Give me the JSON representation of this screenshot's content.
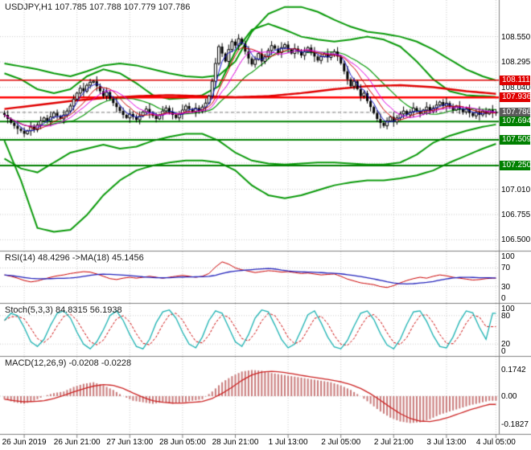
{
  "header": {
    "title": "USDJPY,H1 107.785 107.788 107.779 107.786"
  },
  "indicators": {
    "rsi": {
      "label": "RSI(14) 48.4296 ->MA(18) 45.1456",
      "axis": [
        {
          "v": 100,
          "t": "100"
        },
        {
          "v": 70,
          "t": "70"
        },
        {
          "v": 30,
          "t": "30"
        },
        {
          "v": 0,
          "t": "0"
        }
      ]
    },
    "stoch": {
      "label": "Stoch(5,3,3) 84.8315 56.1938",
      "axis": [
        {
          "v": 100,
          "t": "100"
        },
        {
          "v": 80,
          "t": "80"
        },
        {
          "v": 20,
          "t": "20"
        },
        {
          "v": 0,
          "t": "0"
        }
      ]
    },
    "macd": {
      "label": "MACD(12,26,9) -0.0208 -0.0228",
      "axis": [
        {
          "v": 0.1742,
          "t": "0.1742"
        },
        {
          "v": 0,
          "t": "0.00"
        },
        {
          "v": -0.1827,
          "t": "-0.1827"
        }
      ]
    }
  },
  "price_axis": {
    "plain": [
      {
        "v": 108.55,
        "t": "108.550"
      },
      {
        "v": 108.295,
        "t": "108.295"
      },
      {
        "v": 108.04,
        "t": "108.040"
      },
      {
        "v": 107.01,
        "t": "107.010"
      },
      {
        "v": 106.755,
        "t": "106.755"
      },
      {
        "v": 106.5,
        "t": "106.500"
      }
    ],
    "boxes": [
      {
        "v": 108.111,
        "t": "108.111",
        "bg": "#e00000"
      },
      {
        "v": 107.936,
        "t": "107.936",
        "bg": "#e00000"
      },
      {
        "v": 107.786,
        "t": "107.786",
        "bg": "#5a5a5a"
      },
      {
        "v": 107.694,
        "t": "107.694",
        "bg": "#008000"
      },
      {
        "v": 107.509,
        "t": "107.509",
        "bg": "#008000"
      },
      {
        "v": 107.25,
        "t": "107.250",
        "bg": "#008000"
      }
    ]
  },
  "time_axis": {
    "labels": [
      {
        "i": 6,
        "t": "26 Jun 2019"
      },
      {
        "i": 22,
        "t": "26 Jun 21:00"
      },
      {
        "i": 38,
        "t": "27 Jun 13:00"
      },
      {
        "i": 54,
        "t": "28 Jun 05:00"
      },
      {
        "i": 70,
        "t": "28 Jun 21:00"
      },
      {
        "i": 86,
        "t": "1 Jul 13:00"
      },
      {
        "i": 102,
        "t": "2 Jul 05:00"
      },
      {
        "i": 118,
        "t": "2 Jul 21:00"
      },
      {
        "i": 134,
        "t": "3 Jul 13:00"
      },
      {
        "i": 149,
        "t": "4 Jul 05:00"
      }
    ]
  },
  "colors": {
    "grid": "#cccccc",
    "divider": "#808080",
    "band_green": "#0a9a0a",
    "level_green": "#008000",
    "level_red": "#ff0000",
    "resist_red": "#e00000",
    "ma_blue": "#1414cc",
    "ma_magenta": "#e000e0",
    "ma_red_thin": "#d00000",
    "ma_red_slow": "#e00000",
    "rsi_main": "#cc0000",
    "rsi_ma": "#2020bb",
    "stoch_main": "#1ab2b2",
    "stoch_signal": "#cc0000",
    "macd_hist": "#c97b7b",
    "macd_signal": "#cc2222",
    "current_price_line": "#808080"
  },
  "chart_data": {
    "type": "candlestick",
    "symbol": "USDJPY",
    "timeframe": "H1",
    "ohlc_current": {
      "open": 107.785,
      "high": 107.788,
      "low": 107.779,
      "close": 107.786
    },
    "price_min": 106.39,
    "price_max": 108.92,
    "gridline_prices": [
      108.55,
      108.295,
      108.04,
      107.785,
      107.53,
      107.275,
      107.01,
      106.755,
      106.5
    ],
    "closes": [
      107.76,
      107.72,
      107.68,
      107.65,
      107.62,
      107.6,
      107.57,
      107.6,
      107.64,
      107.61,
      107.66,
      107.7,
      107.73,
      107.7,
      107.74,
      107.78,
      107.75,
      107.72,
      107.76,
      107.8,
      107.85,
      107.92,
      107.98,
      108.03,
      108.0,
      108.06,
      108.09,
      108.1,
      108.05,
      108.0,
      107.95,
      107.99,
      107.92,
      107.88,
      107.84,
      107.8,
      107.76,
      107.73,
      107.77,
      107.74,
      107.71,
      107.75,
      107.79,
      107.82,
      107.78,
      107.75,
      107.72,
      107.76,
      107.8,
      107.83,
      107.79,
      107.76,
      107.73,
      107.77,
      107.81,
      107.85,
      107.82,
      107.79,
      107.83,
      107.8,
      107.84,
      107.88,
      107.95,
      108.1,
      108.28,
      108.45,
      108.38,
      108.3,
      108.42,
      108.5,
      108.46,
      108.53,
      108.48,
      108.4,
      108.33,
      108.27,
      108.32,
      108.38,
      108.3,
      108.35,
      108.41,
      108.46,
      108.43,
      108.39,
      108.44,
      108.47,
      108.42,
      108.38,
      108.43,
      108.4,
      108.36,
      108.4,
      108.44,
      108.39,
      108.35,
      108.31,
      108.35,
      108.38,
      108.34,
      108.37,
      108.4,
      108.35,
      108.28,
      108.2,
      108.12,
      108.05,
      108.1,
      108.02,
      107.95,
      107.98,
      107.9,
      107.84,
      107.78,
      107.72,
      107.68,
      107.65,
      107.7,
      107.74,
      107.69,
      107.73,
      107.77,
      107.8,
      107.76,
      107.79,
      107.83,
      107.8,
      107.77,
      107.81,
      107.84,
      107.8,
      107.83,
      107.86,
      107.89,
      107.85,
      107.88,
      107.84,
      107.81,
      107.85,
      107.82,
      107.79,
      107.82,
      107.78,
      107.75,
      107.79,
      107.76,
      107.8,
      107.77,
      107.81,
      107.78,
      107.79
    ],
    "wick_pattern": [
      0.025,
      0.045,
      0.015,
      0.03,
      0.055,
      0.02,
      0.035,
      0.012,
      0.05,
      0.028
    ],
    "levels": [
      {
        "price": 108.111,
        "color": "#e00000",
        "width": 1.5,
        "dash": null
      },
      {
        "price": 107.936,
        "color": "#ff0000",
        "width": 2.5,
        "dash": null
      },
      {
        "price": 107.786,
        "color": "#808080",
        "width": 1,
        "dash": [
          4,
          3
        ]
      },
      {
        "price": 107.694,
        "color": "#008000",
        "width": 2,
        "dash": null
      },
      {
        "price": 107.509,
        "color": "#008000",
        "width": 2,
        "dash": null
      },
      {
        "price": 107.25,
        "color": "#008000",
        "width": 2,
        "dash": null
      }
    ],
    "bands": {
      "sample_step": 5,
      "upper_inner": [
        108.18,
        108.12,
        108.02,
        107.98,
        108.02,
        108.15,
        108.22,
        108.18,
        108.08,
        107.96,
        107.92,
        107.93,
        107.96,
        108.05,
        108.4,
        108.62,
        108.68,
        108.62,
        108.55,
        108.52,
        108.5,
        108.52,
        108.55,
        108.52,
        108.45,
        108.3,
        108.12,
        108.0,
        107.96,
        107.95,
        107.94
      ],
      "lower_inner": [
        107.32,
        107.22,
        107.18,
        107.28,
        107.38,
        107.42,
        107.46,
        107.42,
        107.44,
        107.5,
        107.54,
        107.57,
        107.57,
        107.5,
        107.38,
        107.3,
        107.27,
        107.26,
        107.27,
        107.28,
        107.28,
        107.27,
        107.26,
        107.26,
        107.28,
        107.36,
        107.48,
        107.55,
        107.6,
        107.64,
        107.67
      ],
      "upper_outer": [
        108.28,
        108.25,
        108.22,
        108.18,
        108.15,
        108.2,
        108.26,
        108.28,
        108.26,
        108.22,
        108.18,
        108.15,
        108.14,
        108.16,
        108.3,
        108.6,
        108.78,
        108.85,
        108.85,
        108.8,
        108.72,
        108.65,
        108.6,
        108.58,
        108.55,
        108.5,
        108.42,
        108.32,
        108.22,
        108.15,
        108.1
      ],
      "lower_outer": [
        107.5,
        107.1,
        106.62,
        106.58,
        106.6,
        106.75,
        106.95,
        107.1,
        107.2,
        107.25,
        107.28,
        107.3,
        107.3,
        107.28,
        107.2,
        107.05,
        106.95,
        106.92,
        106.95,
        107.0,
        107.05,
        107.08,
        107.1,
        107.1,
        107.12,
        107.15,
        107.2,
        107.28,
        107.35,
        107.42,
        107.48
      ]
    },
    "slow_ma_red": {
      "sample_step": 10,
      "values": [
        107.82,
        107.86,
        107.9,
        107.93,
        107.95,
        107.96,
        107.95,
        107.94,
        107.95,
        107.98,
        108.02,
        108.05,
        108.06,
        108.04,
        108.0,
        107.97
      ]
    },
    "rsi": {
      "sample_step": 2,
      "range": [
        0,
        100
      ],
      "levels": [
        70,
        30
      ],
      "values": [
        55,
        52,
        48,
        43,
        40,
        42,
        46,
        50,
        53,
        55,
        58,
        60,
        62,
        61,
        57,
        52,
        47,
        45,
        48,
        50,
        48,
        50,
        52,
        50,
        48,
        50,
        52,
        54,
        52,
        50,
        52,
        58,
        72,
        83,
        78,
        70,
        66,
        63,
        60,
        62,
        64,
        63,
        61,
        62,
        60,
        58,
        59,
        57,
        55,
        56,
        57,
        52,
        46,
        42,
        38,
        36,
        34,
        30,
        28,
        32,
        38,
        43,
        47,
        50,
        48,
        52,
        55,
        53,
        50,
        48,
        46,
        44,
        45,
        47,
        48
      ]
    },
    "stoch": {
      "sample_step": 2,
      "range": [
        0,
        100
      ],
      "levels": [
        80,
        20
      ],
      "values": [
        70,
        85,
        80,
        55,
        25,
        15,
        30,
        60,
        85,
        90,
        75,
        45,
        20,
        10,
        25,
        50,
        80,
        90,
        70,
        40,
        15,
        10,
        30,
        65,
        88,
        92,
        75,
        45,
        20,
        12,
        35,
        70,
        90,
        85,
        55,
        25,
        15,
        40,
        75,
        92,
        88,
        60,
        30,
        12,
        20,
        50,
        82,
        90,
        65,
        35,
        14,
        10,
        28,
        58,
        85,
        90,
        72,
        42,
        18,
        10,
        30,
        62,
        88,
        90,
        68,
        38,
        15,
        12,
        35,
        68,
        90,
        86,
        55,
        30,
        85
      ]
    },
    "macd": {
      "sample_step": 3,
      "range": [
        -0.23,
        0.24
      ],
      "values": [
        -0.02,
        -0.04,
        -0.05,
        -0.03,
        0.0,
        0.02,
        0.03,
        0.06,
        0.08,
        0.09,
        0.07,
        0.04,
        0.0,
        -0.03,
        -0.04,
        -0.05,
        -0.04,
        -0.05,
        -0.04,
        -0.03,
        -0.02,
        0.03,
        0.09,
        0.13,
        0.16,
        0.17,
        0.165,
        0.15,
        0.14,
        0.13,
        0.12,
        0.11,
        0.1,
        0.09,
        0.07,
        0.04,
        0.0,
        -0.05,
        -0.1,
        -0.14,
        -0.165,
        -0.175,
        -0.17,
        -0.15,
        -0.12,
        -0.1,
        -0.08,
        -0.06,
        -0.045,
        -0.03
      ]
    }
  }
}
